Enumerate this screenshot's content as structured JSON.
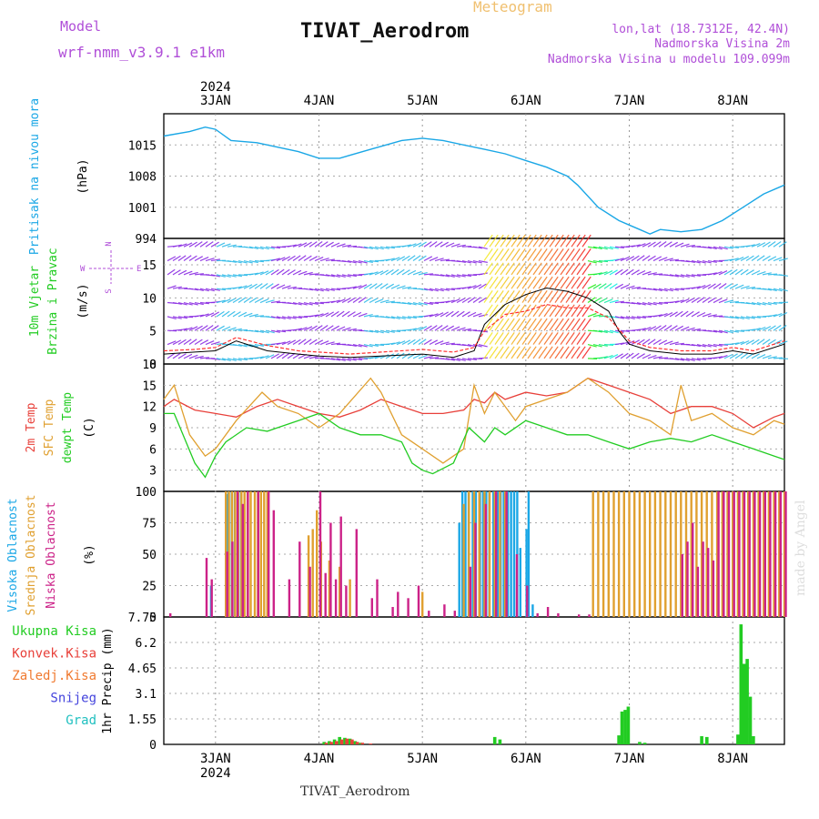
{
  "header": {
    "meteogram_label": "Meteogram",
    "station_title": "TIVAT_Aerodrom",
    "model_label": "Model",
    "model_value": "wrf-nmm_v3.9.1 e1km",
    "coords": "lon,lat (18.7312E, 42.4N)",
    "elevation": "Nadmorska Visina 2m",
    "model_elevation": "Nadmorska Visina u modelu 109.099m",
    "footer_station": "TIVAT_Aerodrom",
    "watermark": "made by Angel"
  },
  "colors": {
    "pressure": "#1aa7e6",
    "temp2m": "#e8403a",
    "sfc_temp": "#e0a030",
    "dewpoint": "#22cc22",
    "high_cloud": "#1aa7e6",
    "mid_cloud": "#e0a030",
    "low_cloud": "#cc2288",
    "precip_total": "#22cc22",
    "precip_conv": "#e8403a",
    "legend_purple": "#b04fd8"
  },
  "chart_data": [
    {
      "type": "line",
      "panel": "pressure",
      "ylabel": "Pritisak na nivou mora",
      "yunit": "(hPa)",
      "yticks": [
        994,
        1001,
        1008,
        1015
      ],
      "ylim": [
        994,
        1022
      ],
      "xticks": [
        "3JAN",
        "4JAN",
        "5JAN",
        "6JAN",
        "7JAN",
        "8JAN"
      ],
      "year_label": "2024",
      "xlim": [
        2.5,
        8.5
      ],
      "x": [
        2.5,
        2.75,
        2.9,
        3.0,
        3.15,
        3.4,
        3.6,
        3.8,
        4.0,
        4.2,
        4.5,
        4.8,
        5.0,
        5.2,
        5.4,
        5.6,
        5.8,
        6.0,
        6.2,
        6.4,
        6.5,
        6.7,
        6.9,
        7.0,
        7.1,
        7.2,
        7.3,
        7.5,
        7.7,
        7.9,
        8.1,
        8.3,
        8.5
      ],
      "y": [
        1017,
        1018,
        1019,
        1018.5,
        1016,
        1015.5,
        1014.5,
        1013.5,
        1012,
        1012,
        1014,
        1016,
        1016.5,
        1016,
        1015,
        1014,
        1013,
        1011.5,
        1010,
        1008,
        1006,
        1001,
        998,
        997,
        996,
        995,
        996,
        995.5,
        996,
        998,
        1001,
        1004,
        1006
      ]
    },
    {
      "type": "line",
      "panel": "wind",
      "ylabel": "10m Vjetar",
      "ylabel2": "Brzina i Pravac",
      "yunit": "(m/s)",
      "compass": [
        "N",
        "W",
        "E",
        "S"
      ],
      "yticks": [
        0,
        5,
        10,
        15
      ],
      "ylim": [
        0,
        19
      ],
      "series": [
        {
          "name": "speed",
          "x": [
            2.5,
            2.8,
            3.0,
            3.2,
            3.5,
            3.8,
            4.0,
            4.3,
            4.6,
            5.0,
            5.3,
            5.5,
            5.6,
            5.8,
            6.0,
            6.2,
            6.4,
            6.6,
            6.8,
            6.9,
            7.0,
            7.2,
            7.5,
            7.8,
            8.0,
            8.2,
            8.5
          ],
          "y": [
            1.5,
            1.8,
            2.0,
            3.5,
            2.0,
            1.5,
            1.2,
            1.0,
            1.2,
            1.5,
            1.0,
            2.0,
            6.0,
            9.0,
            10.5,
            11.5,
            11.0,
            10.0,
            8.0,
            5.0,
            3.0,
            2.0,
            1.5,
            1.5,
            2.0,
            1.5,
            3.0
          ]
        },
        {
          "name": "gust",
          "x": [
            2.5,
            2.8,
            3.0,
            3.2,
            3.5,
            3.8,
            4.0,
            4.3,
            4.6,
            5.0,
            5.3,
            5.5,
            5.6,
            5.8,
            6.0,
            6.2,
            6.4,
            6.6,
            6.8,
            7.0,
            7.2,
            7.5,
            7.8,
            8.0,
            8.2,
            8.5
          ],
          "y": [
            2.0,
            2.2,
            2.5,
            4.0,
            2.8,
            2.0,
            1.8,
            1.5,
            1.8,
            2.2,
            1.8,
            2.5,
            5.0,
            7.5,
            8.0,
            9.0,
            8.5,
            8.5,
            7.0,
            3.5,
            2.5,
            2.0,
            2.0,
            2.5,
            2.0,
            3.5
          ]
        }
      ]
    },
    {
      "type": "line",
      "panel": "temperature",
      "ylabel": "2m Temp",
      "ylabel2": "SFC Temp",
      "ylabel3": "dewpt Temp",
      "yunit": "(C)",
      "yticks": [
        3,
        6,
        9,
        12,
        15,
        18
      ],
      "ylim": [
        0,
        18
      ],
      "series": [
        {
          "name": "2m Temp",
          "x": [
            2.5,
            2.6,
            2.8,
            3.0,
            3.2,
            3.4,
            3.6,
            3.8,
            4.0,
            4.2,
            4.4,
            4.6,
            4.8,
            5.0,
            5.2,
            5.4,
            5.5,
            5.6,
            5.7,
            5.8,
            6.0,
            6.2,
            6.4,
            6.6,
            6.8,
            7.0,
            7.2,
            7.4,
            7.6,
            7.8,
            8.0,
            8.2,
            8.4,
            8.5
          ],
          "y": [
            12,
            13,
            11.5,
            11,
            10.5,
            12,
            13,
            12,
            11,
            10.5,
            11.5,
            13,
            12,
            11,
            11,
            11.5,
            13,
            12.5,
            14,
            13,
            14,
            13.5,
            14,
            16,
            15,
            14,
            13,
            11,
            12,
            12,
            11,
            9,
            10.5,
            11
          ]
        },
        {
          "name": "SFC Temp",
          "x": [
            2.5,
            2.6,
            2.75,
            2.9,
            3.0,
            3.2,
            3.45,
            3.6,
            3.8,
            4.0,
            4.2,
            4.5,
            4.6,
            4.8,
            5.0,
            5.2,
            5.4,
            5.5,
            5.6,
            5.7,
            5.9,
            6.0,
            6.2,
            6.4,
            6.6,
            6.8,
            7.0,
            7.2,
            7.4,
            7.5,
            7.6,
            7.8,
            8.0,
            8.2,
            8.4,
            8.5
          ],
          "y": [
            13,
            15,
            8,
            5,
            6,
            10,
            14,
            12,
            11,
            9,
            11,
            16,
            14,
            8,
            6,
            4,
            6,
            15,
            11,
            14,
            10,
            12,
            13,
            14,
            16,
            14,
            11,
            10,
            8,
            15,
            10,
            11,
            9,
            8,
            10,
            9.5
          ]
        },
        {
          "name": "dewpt Temp",
          "x": [
            2.5,
            2.6,
            2.8,
            2.9,
            3.0,
            3.1,
            3.3,
            3.5,
            3.6,
            3.8,
            4.0,
            4.2,
            4.4,
            4.6,
            4.8,
            4.9,
            5.0,
            5.1,
            5.3,
            5.45,
            5.6,
            5.7,
            5.8,
            6.0,
            6.2,
            6.4,
            6.6,
            6.8,
            7.0,
            7.2,
            7.4,
            7.6,
            7.8,
            8.0,
            8.2,
            8.4,
            8.5
          ],
          "y": [
            11,
            11,
            4,
            2,
            5,
            7,
            9,
            8.5,
            9,
            10,
            11,
            9,
            8,
            8,
            7,
            4,
            3,
            2.5,
            4,
            9,
            7,
            9,
            8,
            10,
            9,
            8,
            8,
            7,
            6,
            7,
            7.5,
            7,
            8,
            7,
            6,
            5,
            4.5
          ]
        }
      ]
    },
    {
      "type": "bar",
      "panel": "clouds",
      "ylabel": "Visoka Oblacnost",
      "ylabel2": "Srednja Oblacnost",
      "ylabel3": "Niska Oblacnost",
      "yunit": "(%)",
      "yticks": [
        0,
        25,
        50,
        75,
        100
      ],
      "ylim": [
        0,
        100
      ],
      "series": [
        {
          "name": "high",
          "x": [
            2.97,
            3.12,
            3.14,
            3.17,
            3.2,
            3.23,
            3.26,
            5.37,
            5.4,
            5.43,
            5.46,
            5.5,
            5.53,
            5.57,
            5.6,
            5.63,
            5.66,
            5.7,
            5.74,
            5.77,
            5.8,
            5.84,
            5.87,
            5.9,
            5.93,
            5.96,
            6.02,
            6.04,
            6.08
          ],
          "y": [
            25,
            98,
            100,
            100,
            100,
            100,
            100,
            75,
            100,
            100,
            100,
            100,
            100,
            100,
            100,
            100,
            100,
            100,
            100,
            100,
            100,
            100,
            100,
            100,
            100,
            55,
            70,
            100,
            10
          ]
        },
        {
          "name": "mid",
          "x": [
            3.1,
            3.13,
            3.16,
            3.19,
            3.22,
            3.25,
            3.28,
            3.31,
            3.34,
            3.38,
            3.41,
            3.44,
            3.47,
            3.5,
            3.9,
            3.94,
            3.98,
            4.02,
            4.1,
            4.2,
            4.3,
            5.0,
            5.4,
            5.45,
            5.5,
            5.55,
            5.6,
            5.65,
            5.7,
            5.75,
            5.8,
            6.65,
            6.7,
            6.75,
            6.8,
            6.85,
            6.9,
            6.95,
            7.0,
            7.05,
            7.1,
            7.15,
            7.2,
            7.25,
            7.3,
            7.35,
            7.4,
            7.45,
            7.5,
            7.55,
            7.6,
            7.65,
            7.7,
            7.75,
            7.8,
            7.85,
            7.9,
            7.95,
            8.0,
            8.05,
            8.1,
            8.15,
            8.2,
            8.25,
            8.3,
            8.35,
            8.4,
            8.45,
            8.5
          ],
          "y": [
            100,
            100,
            100,
            100,
            100,
            100,
            100,
            100,
            100,
            100,
            100,
            100,
            100,
            100,
            65,
            70,
            85,
            60,
            45,
            40,
            30,
            20,
            90,
            100,
            100,
            100,
            100,
            100,
            100,
            100,
            100,
            100,
            100,
            100,
            100,
            100,
            100,
            100,
            100,
            100,
            100,
            100,
            100,
            100,
            100,
            100,
            100,
            100,
            100,
            100,
            100,
            100,
            100,
            100,
            100,
            100,
            100,
            100,
            100,
            100,
            100,
            100,
            100,
            100,
            100,
            100,
            100,
            100,
            100
          ]
        },
        {
          "name": "low",
          "x": [
            2.55,
            2.9,
            2.95,
            3.1,
            3.15,
            3.2,
            3.25,
            3.3,
            3.4,
            3.5,
            3.55,
            3.7,
            3.8,
            3.9,
            4.0,
            4.05,
            4.1,
            4.15,
            4.2,
            4.25,
            4.35,
            4.5,
            4.55,
            4.7,
            4.75,
            4.85,
            4.95,
            5.05,
            5.2,
            5.3,
            5.45,
            5.5,
            5.6,
            5.7,
            5.8,
            5.9,
            6.0,
            6.1,
            6.2,
            6.3,
            6.5,
            6.6,
            7.5,
            7.55,
            7.6,
            7.65,
            7.7,
            7.75,
            7.8,
            7.85,
            7.9,
            7.95,
            8.0,
            8.05,
            8.1,
            8.15,
            8.2,
            8.25,
            8.3,
            8.35,
            8.4,
            8.45,
            8.5
          ],
          "y": [
            3,
            47,
            30,
            52,
            60,
            100,
            90,
            100,
            100,
            100,
            85,
            30,
            60,
            40,
            100,
            35,
            75,
            30,
            80,
            25,
            70,
            15,
            30,
            8,
            20,
            15,
            25,
            5,
            10,
            5,
            40,
            75,
            90,
            100,
            100,
            50,
            25,
            3,
            8,
            3,
            2,
            2,
            50,
            60,
            75,
            40,
            60,
            55,
            45,
            100,
            100,
            100,
            100,
            100,
            100,
            100,
            100,
            100,
            100,
            100,
            100,
            100,
            100
          ]
        }
      ]
    },
    {
      "type": "bar",
      "panel": "precipitation",
      "ylabel": "1hr Precip",
      "yunit": "(mm)",
      "yticks": [
        0,
        1.55,
        3.1,
        4.65,
        6.2,
        7.75
      ],
      "ylim": [
        0,
        7.75
      ],
      "legend": [
        "Ukupna Kisa",
        "Konvek.Kisa",
        "Zaledj.Kisa",
        "Snijeg",
        "Grad"
      ],
      "series": [
        {
          "name": "Ukupna Kisa",
          "x": [
            4.05,
            4.1,
            4.15,
            4.2,
            4.25,
            4.3,
            4.35,
            4.4,
            5.7,
            5.75,
            6.9,
            6.93,
            6.96,
            6.99,
            7.1,
            7.15,
            7.7,
            7.75,
            8.05,
            8.08,
            8.11,
            8.14,
            8.17,
            8.2
          ],
          "y": [
            0.15,
            0.2,
            0.3,
            0.45,
            0.4,
            0.35,
            0.2,
            0.1,
            0.45,
            0.3,
            0.55,
            2.0,
            2.1,
            2.3,
            0.15,
            0.1,
            0.5,
            0.45,
            0.6,
            7.3,
            4.9,
            5.2,
            2.9,
            0.5
          ]
        },
        {
          "name": "Konvek.Kisa",
          "x": [
            4.07,
            4.12,
            4.17,
            4.22,
            4.27,
            4.32,
            4.37,
            4.42,
            4.5
          ],
          "y": [
            0.1,
            0.15,
            0.2,
            0.3,
            0.35,
            0.3,
            0.15,
            0.1,
            0.05
          ]
        }
      ]
    }
  ]
}
